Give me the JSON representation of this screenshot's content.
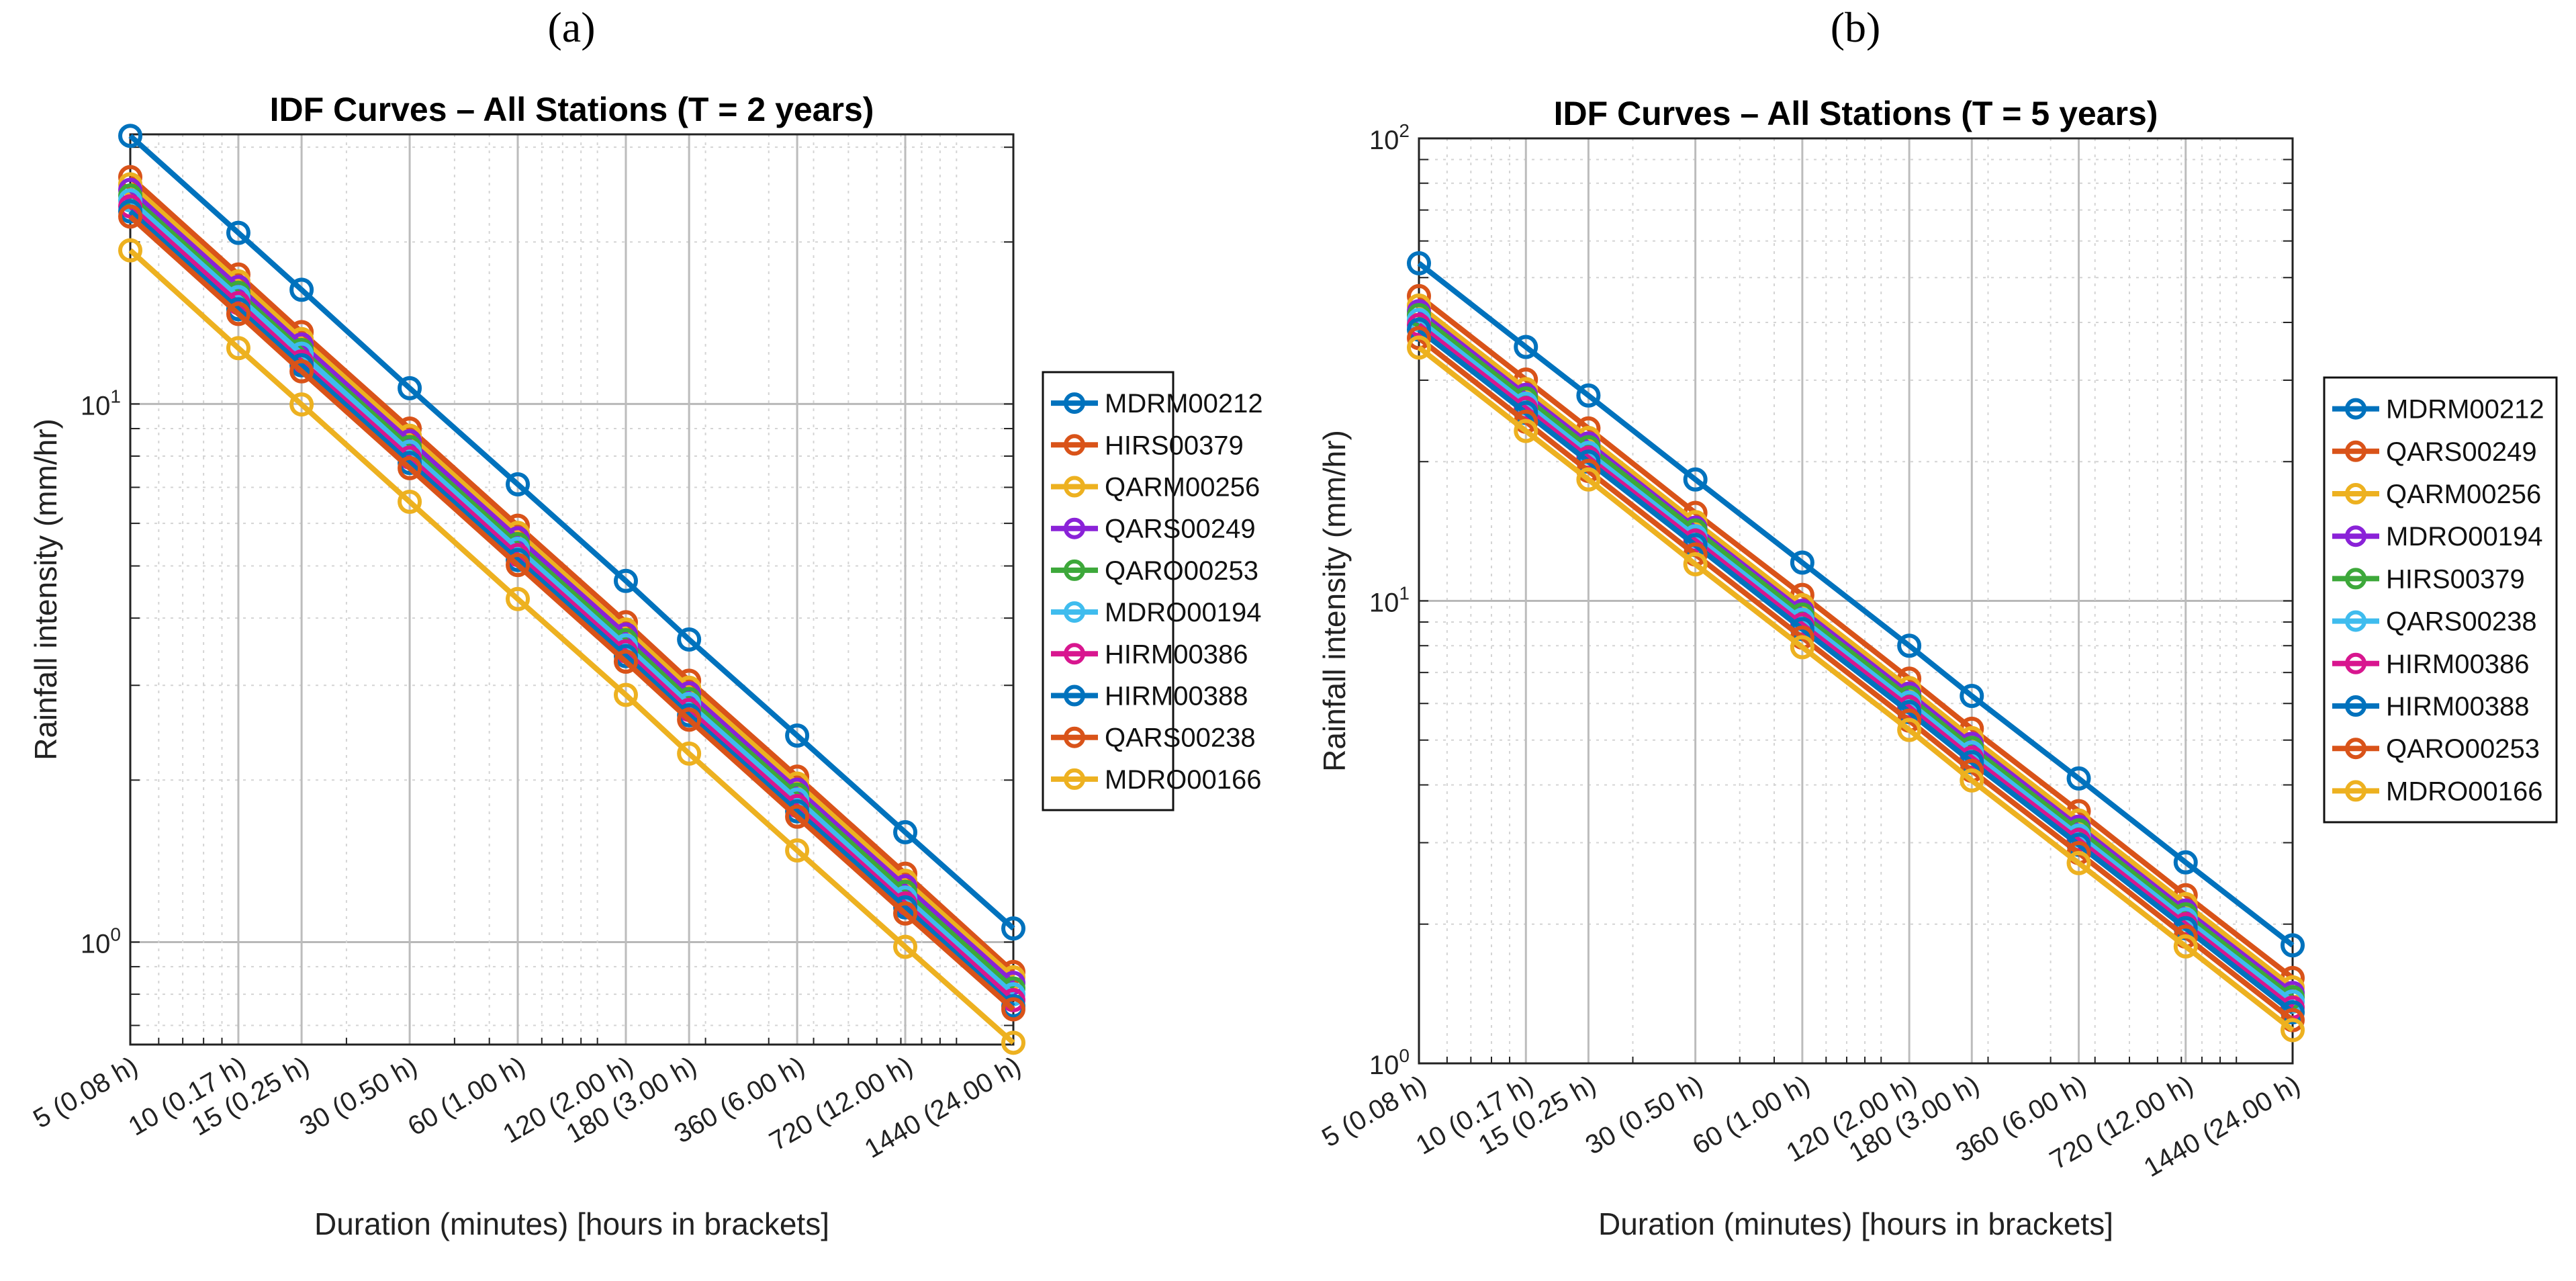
{
  "colors": [
    "#0072BD",
    "#D95319",
    "#EDB120",
    "#8A22D8",
    "#3DA83A",
    "#3FBCEE",
    "#D8168F",
    "#0072BD",
    "#D95319",
    "#EDB120"
  ],
  "chart_data": [
    {
      "panel": "(a)",
      "type": "line",
      "title": "IDF Curves – All Stations (T = 2 years)",
      "xlabel": "Duration (minutes)  [hours in brackets]",
      "ylabel": "Rainfall intensity (mm/hr)",
      "xscale": "log",
      "yscale": "log",
      "x": [
        5,
        10,
        15,
        30,
        60,
        120,
        180,
        360,
        720,
        1440
      ],
      "xtick_labels": [
        "5 (0.08 h)",
        "10 (0.17 h)",
        "15 (0.25 h)",
        "30 (0.50 h)",
        "60 (1.00 h)",
        "120 (2.00 h)",
        "180 (3.00 h)",
        "360 (6.00 h)",
        "720 (12.00 h)",
        "1440 (24.00 h)"
      ],
      "yticks": [
        {
          "value": 1,
          "base": "10",
          "exp": "0"
        },
        {
          "value": 10,
          "base": "10",
          "exp": "1"
        }
      ],
      "xlim": [
        5,
        1440
      ],
      "ylim": [
        0.645,
        31.7
      ],
      "grid": true,
      "legend_position": "outside-right",
      "series": [
        {
          "name": "MDRM00212",
          "values": [
            31.5,
            20.8,
            16.3,
            10.7,
            7.09,
            4.69,
            3.65,
            2.42,
            1.6,
            1.06
          ]
        },
        {
          "name": "HIRS00379",
          "values": [
            26.4,
            17.4,
            13.6,
            9.0,
            5.94,
            3.93,
            3.06,
            2.03,
            1.34,
            0.88
          ]
        },
        {
          "name": "QARM00256",
          "values": [
            25.6,
            16.9,
            13.2,
            8.73,
            5.76,
            3.81,
            2.97,
            1.97,
            1.3,
            0.86
          ]
        },
        {
          "name": "QARS00249",
          "values": [
            25.0,
            16.5,
            12.9,
            8.53,
            5.63,
            3.73,
            2.9,
            1.92,
            1.27,
            0.84
          ]
        },
        {
          "name": "QARO00253",
          "values": [
            24.4,
            16.1,
            12.6,
            8.32,
            5.49,
            3.64,
            2.83,
            1.88,
            1.24,
            0.82
          ]
        },
        {
          "name": "MDRO00194",
          "values": [
            23.9,
            15.8,
            12.4,
            8.15,
            5.38,
            3.56,
            2.77,
            1.84,
            1.21,
            0.8
          ]
        },
        {
          "name": "HIRM00386",
          "values": [
            23.3,
            15.4,
            12.0,
            7.95,
            5.24,
            3.47,
            2.7,
            1.79,
            1.18,
            0.78
          ]
        },
        {
          "name": "HIRM00388",
          "values": [
            22.8,
            15.0,
            11.8,
            7.77,
            5.13,
            3.4,
            2.64,
            1.75,
            1.16,
            0.76
          ]
        },
        {
          "name": "QARS00238",
          "values": [
            22.3,
            14.7,
            11.5,
            7.6,
            5.02,
            3.32,
            2.59,
            1.71,
            1.13,
            0.75
          ]
        },
        {
          "name": "MDRO00166",
          "values": [
            19.3,
            12.7,
            9.98,
            6.58,
            4.34,
            2.88,
            2.24,
            1.48,
            0.98,
            0.65
          ]
        }
      ]
    },
    {
      "panel": "(b)",
      "type": "line",
      "title": "IDF Curves – All Stations (T = 5 years)",
      "xlabel": "Duration (minutes)  [hours in brackets]",
      "ylabel": "Rainfall intensity (mm/hr)",
      "xscale": "log",
      "yscale": "log",
      "x": [
        5,
        10,
        15,
        30,
        60,
        120,
        180,
        360,
        720,
        1440
      ],
      "xtick_labels": [
        "5 (0.08 h)",
        "10 (0.17 h)",
        "15 (0.25 h)",
        "30 (0.50 h)",
        "60 (1.00 h)",
        "120 (2.00 h)",
        "180 (3.00 h)",
        "360 (6.00 h)",
        "720 (12.00 h)",
        "1440 (24.00 h)"
      ],
      "yticks": [
        {
          "value": 1,
          "base": "10",
          "exp": "0"
        },
        {
          "value": 10,
          "base": "10",
          "exp": "1"
        },
        {
          "value": 100,
          "base": "10",
          "exp": "2"
        }
      ],
      "xlim": [
        5,
        1440
      ],
      "ylim": [
        1,
        100
      ],
      "grid": true,
      "legend_position": "outside-right",
      "series": [
        {
          "name": "MDRM00212",
          "values": [
            53.7,
            35.4,
            27.8,
            18.3,
            12.1,
            8.0,
            6.23,
            4.13,
            2.72,
            1.8
          ]
        },
        {
          "name": "QARS00249",
          "values": [
            45.6,
            30.1,
            23.6,
            15.5,
            10.3,
            6.79,
            5.29,
            3.51,
            2.31,
            1.53
          ]
        },
        {
          "name": "QARM00256",
          "values": [
            43.5,
            28.7,
            22.5,
            14.8,
            9.79,
            6.48,
            5.05,
            3.35,
            2.21,
            1.46
          ]
        },
        {
          "name": "MDRO00194",
          "values": [
            42.3,
            27.9,
            21.9,
            14.4,
            9.52,
            6.3,
            4.91,
            3.25,
            2.14,
            1.42
          ]
        },
        {
          "name": "HIRS00379",
          "values": [
            41.5,
            27.4,
            21.5,
            14.2,
            9.34,
            6.18,
            4.81,
            3.19,
            2.1,
            1.39
          ]
        },
        {
          "name": "QARS00238",
          "values": [
            40.5,
            26.7,
            20.9,
            13.8,
            9.11,
            6.03,
            4.7,
            3.11,
            2.05,
            1.36
          ]
        },
        {
          "name": "HIRM00386",
          "values": [
            39.5,
            26.1,
            20.4,
            13.5,
            8.89,
            5.89,
            4.58,
            3.04,
            2.0,
            1.32
          ]
        },
        {
          "name": "HIRM00388",
          "values": [
            38.6,
            25.5,
            20.0,
            13.2,
            8.69,
            5.75,
            4.48,
            2.97,
            1.96,
            1.29
          ]
        },
        {
          "name": "QARO00253",
          "values": [
            37.0,
            24.4,
            19.1,
            12.6,
            8.33,
            5.51,
            4.29,
            2.85,
            1.88,
            1.24
          ]
        },
        {
          "name": "MDRO00166",
          "values": [
            35.3,
            23.3,
            18.3,
            12.0,
            7.94,
            5.26,
            4.09,
            2.71,
            1.79,
            1.18
          ]
        }
      ]
    }
  ]
}
